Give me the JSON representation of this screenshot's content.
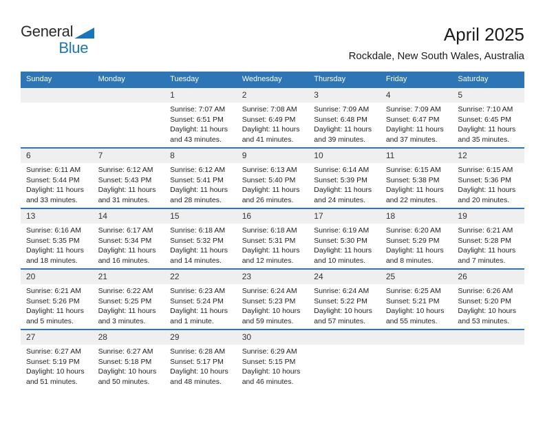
{
  "page": {
    "title": "April 2025",
    "subtitle": "Rockdale, New South Wales, Australia"
  },
  "logo": {
    "word1": "General",
    "word2": "Blue",
    "triangle_icon": "flag-triangle"
  },
  "colors": {
    "accent": "#1B75BC",
    "logo_text": "#2B2B2B",
    "header_bg": "#2E75B6",
    "header_text": "#FFFFFF",
    "divider": "#2E75B6",
    "band": "#EFEFEF",
    "date_text": "#333333",
    "detail_text": "#212121"
  },
  "calendar": {
    "day_headers": [
      "Sunday",
      "Monday",
      "Tuesday",
      "Wednesday",
      "Thursday",
      "Friday",
      "Saturday"
    ],
    "weeks": [
      {
        "cells": [
          {
            "date": "",
            "lines": []
          },
          {
            "date": "",
            "lines": []
          },
          {
            "date": "1",
            "lines": [
              "Sunrise: 7:07 AM",
              "Sunset: 6:51 PM",
              "Daylight: 11 hours",
              "and 43 minutes."
            ]
          },
          {
            "date": "2",
            "lines": [
              "Sunrise: 7:08 AM",
              "Sunset: 6:49 PM",
              "Daylight: 11 hours",
              "and 41 minutes."
            ]
          },
          {
            "date": "3",
            "lines": [
              "Sunrise: 7:09 AM",
              "Sunset: 6:48 PM",
              "Daylight: 11 hours",
              "and 39 minutes."
            ]
          },
          {
            "date": "4",
            "lines": [
              "Sunrise: 7:09 AM",
              "Sunset: 6:47 PM",
              "Daylight: 11 hours",
              "and 37 minutes."
            ]
          },
          {
            "date": "5",
            "lines": [
              "Sunrise: 7:10 AM",
              "Sunset: 6:45 PM",
              "Daylight: 11 hours",
              "and 35 minutes."
            ]
          }
        ]
      },
      {
        "cells": [
          {
            "date": "6",
            "lines": [
              "Sunrise: 6:11 AM",
              "Sunset: 5:44 PM",
              "Daylight: 11 hours",
              "and 33 minutes."
            ]
          },
          {
            "date": "7",
            "lines": [
              "Sunrise: 6:12 AM",
              "Sunset: 5:43 PM",
              "Daylight: 11 hours",
              "and 31 minutes."
            ]
          },
          {
            "date": "8",
            "lines": [
              "Sunrise: 6:12 AM",
              "Sunset: 5:41 PM",
              "Daylight: 11 hours",
              "and 28 minutes."
            ]
          },
          {
            "date": "9",
            "lines": [
              "Sunrise: 6:13 AM",
              "Sunset: 5:40 PM",
              "Daylight: 11 hours",
              "and 26 minutes."
            ]
          },
          {
            "date": "10",
            "lines": [
              "Sunrise: 6:14 AM",
              "Sunset: 5:39 PM",
              "Daylight: 11 hours",
              "and 24 minutes."
            ]
          },
          {
            "date": "11",
            "lines": [
              "Sunrise: 6:15 AM",
              "Sunset: 5:38 PM",
              "Daylight: 11 hours",
              "and 22 minutes."
            ]
          },
          {
            "date": "12",
            "lines": [
              "Sunrise: 6:15 AM",
              "Sunset: 5:36 PM",
              "Daylight: 11 hours",
              "and 20 minutes."
            ]
          }
        ]
      },
      {
        "cells": [
          {
            "date": "13",
            "lines": [
              "Sunrise: 6:16 AM",
              "Sunset: 5:35 PM",
              "Daylight: 11 hours",
              "and 18 minutes."
            ]
          },
          {
            "date": "14",
            "lines": [
              "Sunrise: 6:17 AM",
              "Sunset: 5:34 PM",
              "Daylight: 11 hours",
              "and 16 minutes."
            ]
          },
          {
            "date": "15",
            "lines": [
              "Sunrise: 6:18 AM",
              "Sunset: 5:32 PM",
              "Daylight: 11 hours",
              "and 14 minutes."
            ]
          },
          {
            "date": "16",
            "lines": [
              "Sunrise: 6:18 AM",
              "Sunset: 5:31 PM",
              "Daylight: 11 hours",
              "and 12 minutes."
            ]
          },
          {
            "date": "17",
            "lines": [
              "Sunrise: 6:19 AM",
              "Sunset: 5:30 PM",
              "Daylight: 11 hours",
              "and 10 minutes."
            ]
          },
          {
            "date": "18",
            "lines": [
              "Sunrise: 6:20 AM",
              "Sunset: 5:29 PM",
              "Daylight: 11 hours",
              "and 8 minutes."
            ]
          },
          {
            "date": "19",
            "lines": [
              "Sunrise: 6:21 AM",
              "Sunset: 5:28 PM",
              "Daylight: 11 hours",
              "and 7 minutes."
            ]
          }
        ]
      },
      {
        "cells": [
          {
            "date": "20",
            "lines": [
              "Sunrise: 6:21 AM",
              "Sunset: 5:26 PM",
              "Daylight: 11 hours",
              "and 5 minutes."
            ]
          },
          {
            "date": "21",
            "lines": [
              "Sunrise: 6:22 AM",
              "Sunset: 5:25 PM",
              "Daylight: 11 hours",
              "and 3 minutes."
            ]
          },
          {
            "date": "22",
            "lines": [
              "Sunrise: 6:23 AM",
              "Sunset: 5:24 PM",
              "Daylight: 11 hours",
              "and 1 minute."
            ]
          },
          {
            "date": "23",
            "lines": [
              "Sunrise: 6:24 AM",
              "Sunset: 5:23 PM",
              "Daylight: 10 hours",
              "and 59 minutes."
            ]
          },
          {
            "date": "24",
            "lines": [
              "Sunrise: 6:24 AM",
              "Sunset: 5:22 PM",
              "Daylight: 10 hours",
              "and 57 minutes."
            ]
          },
          {
            "date": "25",
            "lines": [
              "Sunrise: 6:25 AM",
              "Sunset: 5:21 PM",
              "Daylight: 10 hours",
              "and 55 minutes."
            ]
          },
          {
            "date": "26",
            "lines": [
              "Sunrise: 6:26 AM",
              "Sunset: 5:20 PM",
              "Daylight: 10 hours",
              "and 53 minutes."
            ]
          }
        ]
      },
      {
        "cells": [
          {
            "date": "27",
            "lines": [
              "Sunrise: 6:27 AM",
              "Sunset: 5:19 PM",
              "Daylight: 10 hours",
              "and 51 minutes."
            ]
          },
          {
            "date": "28",
            "lines": [
              "Sunrise: 6:27 AM",
              "Sunset: 5:18 PM",
              "Daylight: 10 hours",
              "and 50 minutes."
            ]
          },
          {
            "date": "29",
            "lines": [
              "Sunrise: 6:28 AM",
              "Sunset: 5:17 PM",
              "Daylight: 10 hours",
              "and 48 minutes."
            ]
          },
          {
            "date": "30",
            "lines": [
              "Sunrise: 6:29 AM",
              "Sunset: 5:15 PM",
              "Daylight: 10 hours",
              "and 46 minutes."
            ]
          },
          {
            "date": "",
            "lines": []
          },
          {
            "date": "",
            "lines": []
          },
          {
            "date": "",
            "lines": []
          }
        ]
      }
    ]
  }
}
